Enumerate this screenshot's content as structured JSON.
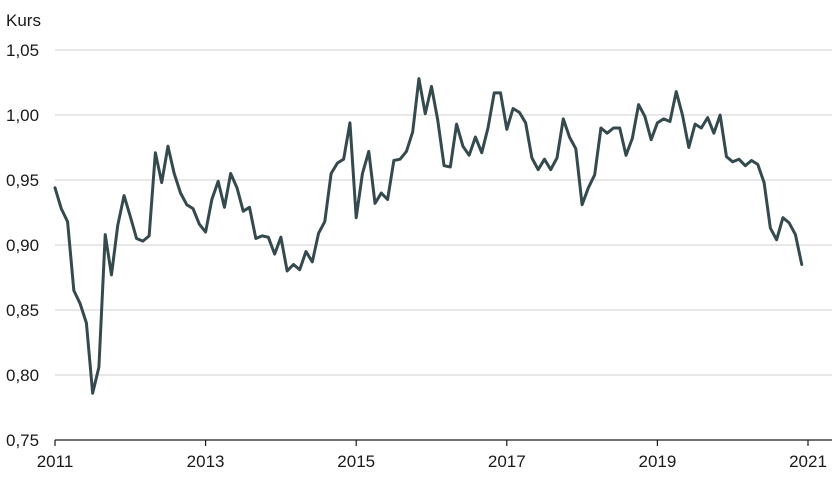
{
  "chart_data": {
    "type": "line",
    "title": "",
    "ylabel": "Kurs",
    "xlabel": "",
    "ylim": [
      0.75,
      1.05
    ],
    "yticks": [
      0.75,
      0.8,
      0.85,
      0.9,
      0.95,
      1.0,
      1.05
    ],
    "ytick_labels": [
      "0,75",
      "0,80",
      "0,85",
      "0,90",
      "0,95",
      "1,00",
      "1,05"
    ],
    "xlim": [
      2011,
      2021
    ],
    "xticks": [
      2011,
      2013,
      2015,
      2017,
      2019,
      2021
    ],
    "xtick_labels": [
      "2011",
      "2013",
      "2015",
      "2017",
      "2019",
      "2021"
    ],
    "grid": "horizontal",
    "line_color": "#344a4e",
    "series": [
      {
        "x": [
          2011.0,
          2011.083,
          2011.167,
          2011.25,
          2011.333,
          2011.417,
          2011.5,
          2011.583,
          2011.667,
          2011.75,
          2011.833,
          2011.917,
          2012.0,
          2012.083,
          2012.167,
          2012.25,
          2012.333,
          2012.417,
          2012.5,
          2012.583,
          2012.667,
          2012.75,
          2012.833,
          2012.917,
          2013.0,
          2013.083,
          2013.167,
          2013.25,
          2013.333,
          2013.417,
          2013.5,
          2013.583,
          2013.667,
          2013.75,
          2013.833,
          2013.917,
          2014.0,
          2014.083,
          2014.167,
          2014.25,
          2014.333,
          2014.417,
          2014.5,
          2014.583,
          2014.667,
          2014.75,
          2014.833,
          2014.917,
          2015.0,
          2015.083,
          2015.167,
          2015.25,
          2015.333,
          2015.417,
          2015.5,
          2015.583,
          2015.667,
          2015.75,
          2015.833,
          2015.917,
          2016.0,
          2016.083,
          2016.167,
          2016.25,
          2016.333,
          2016.417,
          2016.5,
          2016.583,
          2016.667,
          2016.75,
          2016.833,
          2016.917,
          2017.0,
          2017.083,
          2017.167,
          2017.25,
          2017.333,
          2017.417,
          2017.5,
          2017.583,
          2017.667,
          2017.75,
          2017.833,
          2017.917,
          2018.0,
          2018.083,
          2018.167,
          2018.25,
          2018.333,
          2018.417,
          2018.5,
          2018.583,
          2018.667,
          2018.75,
          2018.833,
          2018.917,
          2019.0,
          2019.083,
          2019.167,
          2019.25,
          2019.333,
          2019.417,
          2019.5,
          2019.583,
          2019.667,
          2019.75,
          2019.833,
          2019.917,
          2020.0,
          2020.083,
          2020.167,
          2020.25,
          2020.333,
          2020.417,
          2020.5,
          2020.583,
          2020.667,
          2020.75,
          2020.833,
          2020.917
        ],
        "values": [
          0.944,
          0.928,
          0.918,
          0.865,
          0.855,
          0.84,
          0.786,
          0.806,
          0.908,
          0.877,
          0.915,
          0.938,
          0.922,
          0.905,
          0.903,
          0.907,
          0.971,
          0.948,
          0.976,
          0.955,
          0.94,
          0.931,
          0.928,
          0.916,
          0.91,
          0.935,
          0.949,
          0.929,
          0.955,
          0.944,
          0.926,
          0.929,
          0.905,
          0.907,
          0.906,
          0.893,
          0.906,
          0.88,
          0.885,
          0.881,
          0.895,
          0.887,
          0.909,
          0.918,
          0.955,
          0.963,
          0.966,
          0.994,
          0.921,
          0.955,
          0.972,
          0.932,
          0.94,
          0.935,
          0.965,
          0.966,
          0.972,
          0.987,
          1.028,
          1.001,
          1.022,
          0.996,
          0.961,
          0.96,
          0.993,
          0.976,
          0.969,
          0.983,
          0.971,
          0.99,
          1.017,
          1.017,
          0.989,
          1.005,
          1.002,
          0.994,
          0.967,
          0.958,
          0.966,
          0.958,
          0.967,
          0.997,
          0.983,
          0.974,
          0.931,
          0.944,
          0.954,
          0.99,
          0.986,
          0.99,
          0.99,
          0.969,
          0.982,
          1.008,
          0.999,
          0.981,
          0.994,
          0.997,
          0.995,
          1.018,
          1.0,
          0.975,
          0.993,
          0.99,
          0.998,
          0.986,
          1.0,
          0.968,
          0.964,
          0.966,
          0.961,
          0.965,
          0.962,
          0.948,
          0.913,
          0.904,
          0.921,
          0.917,
          0.908,
          0.885
        ]
      }
    ]
  }
}
